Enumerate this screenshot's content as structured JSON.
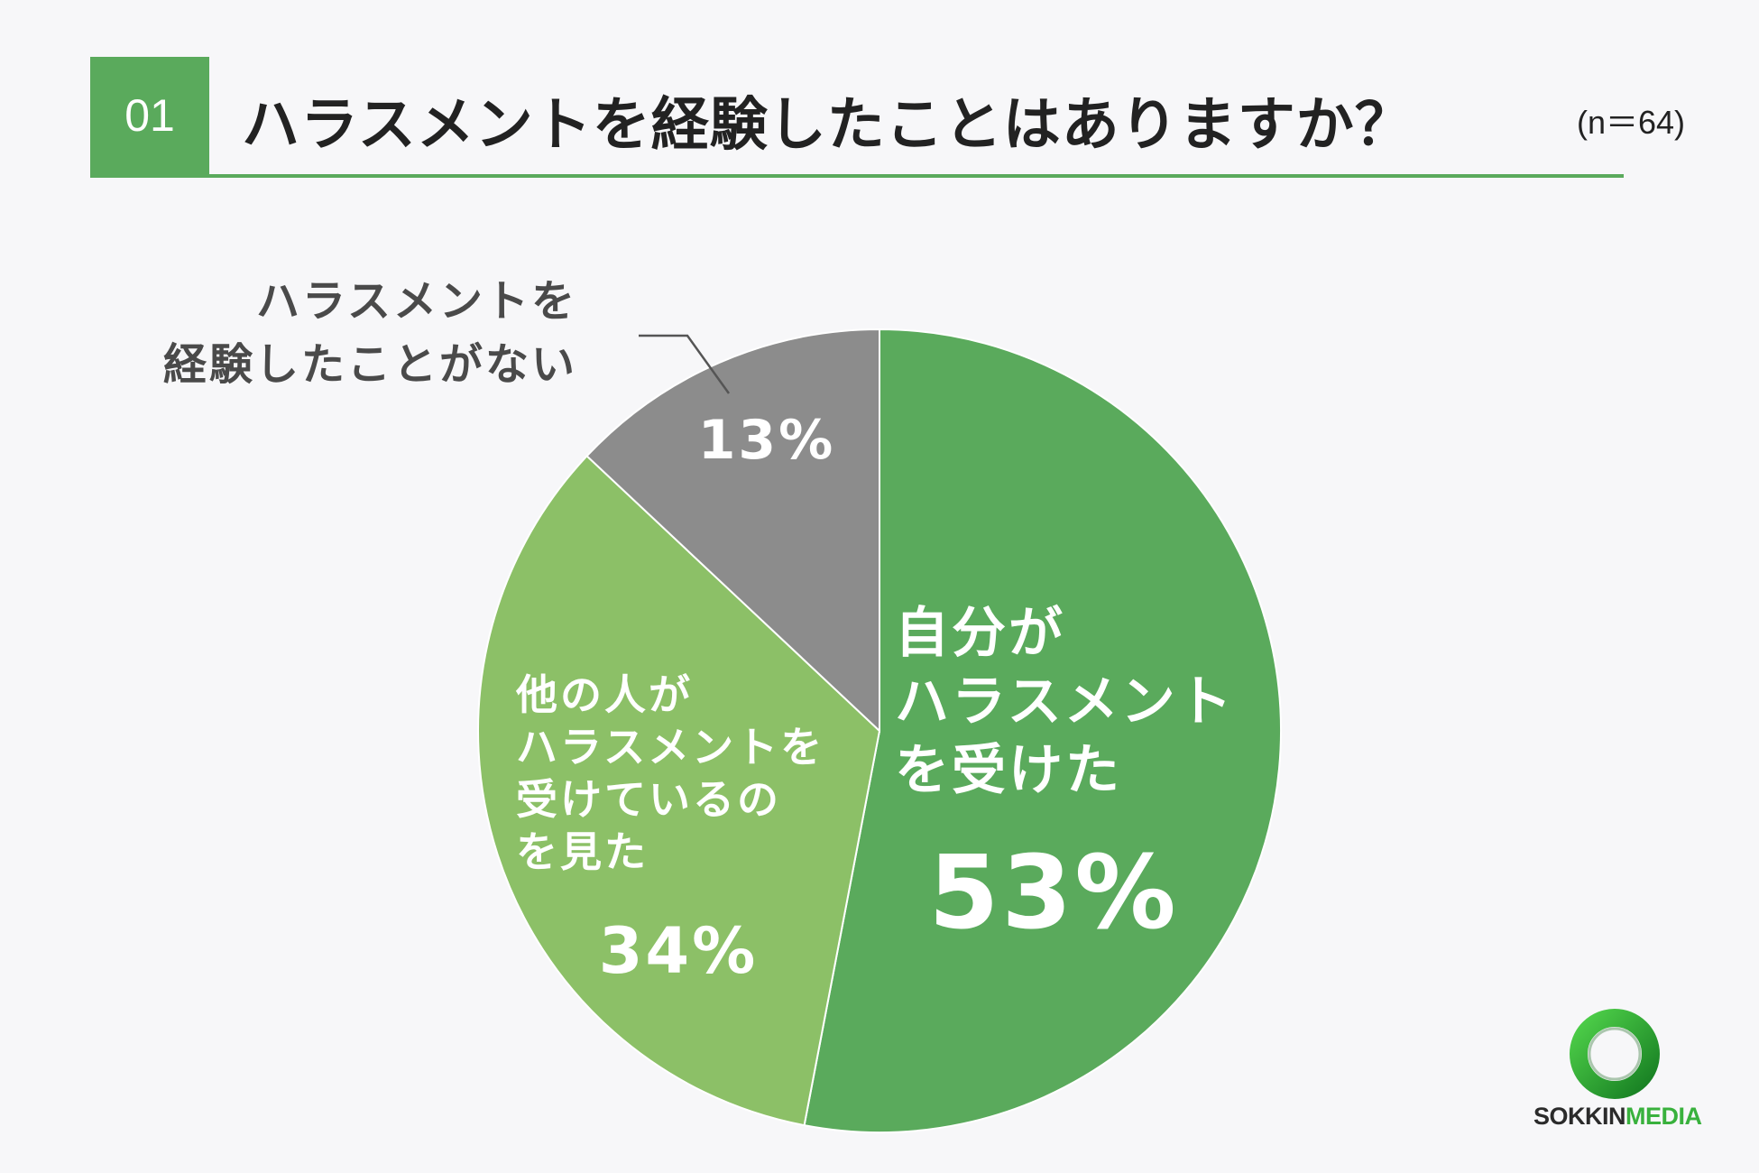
{
  "header": {
    "number": "01",
    "question": "ハラスメントを経験したことはありますか？",
    "sample_size": "(n＝64)"
  },
  "chart_data": {
    "type": "pie",
    "categories": [
      "自分がハラスメントを受けた",
      "他の人がハラスメントを受けているのを見た",
      "ハラスメントを経験したことがない"
    ],
    "values": [
      53,
      34,
      13
    ],
    "value_labels": [
      "53%",
      "34%",
      "13%"
    ],
    "category_label_lines": [
      [
        "自分が",
        "ハラスメント",
        "を受けた"
      ],
      [
        "他の人が",
        "ハラスメントを",
        "受けているの",
        "を見た"
      ],
      [
        "ハラスメントを",
        "経験したことがない"
      ]
    ],
    "colors": [
      "#5aaa5c",
      "#8cc067",
      "#8c8c8c"
    ],
    "start_angle": "12 o'clock",
    "direction": "clockwise"
  },
  "logo": {
    "text_dark": "SOKKIN",
    "text_accent": "MEDIA",
    "accent_color": "#39b13d"
  }
}
